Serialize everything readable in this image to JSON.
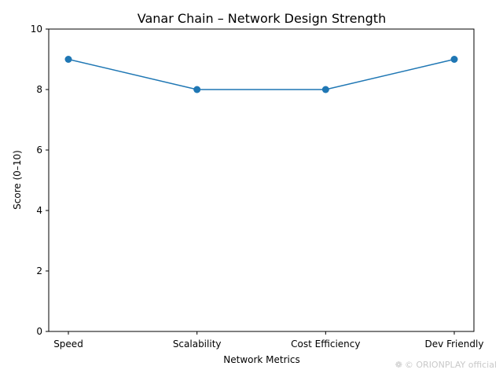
{
  "chart_data": {
    "type": "line",
    "title": "Vanar Chain – Network Design Strength",
    "xlabel": "Network Metrics",
    "ylabel": "Score (0–10)",
    "categories": [
      "Speed",
      "Scalability",
      "Cost Efficiency",
      "Dev Friendly"
    ],
    "series": [
      {
        "values": [
          9,
          8,
          8,
          9
        ]
      }
    ],
    "ylim": [
      0,
      10
    ],
    "yticks": [
      0,
      2,
      4,
      6,
      8,
      10
    ],
    "grid": false,
    "legend": "none",
    "marker": "circle",
    "colors": {
      "line": "#1f77b4",
      "axis": "#000000",
      "text": "#000000"
    }
  },
  "watermark": {
    "icon": "flower-icon",
    "text": "© ORIONPLAY official"
  }
}
